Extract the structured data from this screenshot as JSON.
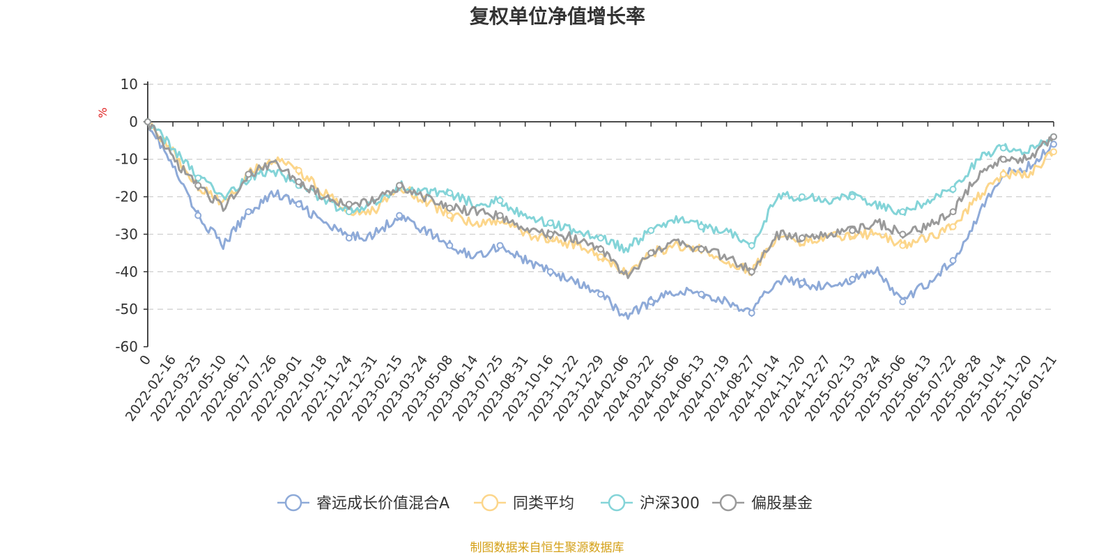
{
  "chart_data": {
    "type": "line",
    "title": "复权单位净值增长率",
    "ylabel": "%",
    "ylim": [
      -60,
      10
    ],
    "yticks": [
      10,
      0,
      -10,
      -20,
      -30,
      -40,
      -50,
      -60
    ],
    "grid": true,
    "legend_position": "bottom",
    "source": "制图数据来自恒生聚源数据库",
    "x": [
      "0",
      "2022-02-16",
      "2022-03-25",
      "2022-05-10",
      "2022-06-17",
      "2022-07-26",
      "2022-09-01",
      "2022-10-18",
      "2022-11-24",
      "2022-12-31",
      "2023-02-15",
      "2023-03-24",
      "2023-05-08",
      "2023-06-14",
      "2023-07-25",
      "2023-08-31",
      "2023-10-16",
      "2023-11-22",
      "2023-12-29",
      "2024-02-06",
      "2024-03-22",
      "2024-05-06",
      "2024-06-13",
      "2024-07-19",
      "2024-08-27",
      "2024-10-14",
      "2024-11-20",
      "2024-12-27",
      "2025-02-13",
      "2025-03-24",
      "2025-05-06",
      "2025-06-13",
      "2025-07-22",
      "2025-08-28",
      "2025-10-14",
      "2025-11-20",
      "2026-01-21"
    ],
    "series": [
      {
        "name": "睿远成长价值混合A",
        "color": "#8eaad8",
        "values": [
          0,
          -12,
          -25,
          -33,
          -24,
          -19,
          -22,
          -27,
          -31,
          -30,
          -25,
          -29,
          -33,
          -36,
          -33,
          -37,
          -40,
          -43,
          -46,
          -52,
          -48,
          -45,
          -46,
          -48,
          -51,
          -42,
          -43,
          -44,
          -42,
          -40,
          -48,
          -43,
          -37,
          -25,
          -14,
          -12,
          -6
        ]
      },
      {
        "name": "同类平均",
        "color": "#fcd68b",
        "values": [
          0,
          -8,
          -17,
          -22,
          -14,
          -10,
          -13,
          -19,
          -24,
          -24,
          -17,
          -21,
          -25,
          -27,
          -26,
          -30,
          -31,
          -33,
          -36,
          -40,
          -35,
          -33,
          -34,
          -37,
          -40,
          -31,
          -32,
          -31,
          -30,
          -30,
          -33,
          -31,
          -28,
          -20,
          -14,
          -14,
          -8
        ]
      },
      {
        "name": "沪深300",
        "color": "#84d4d8",
        "values": [
          0,
          -7,
          -15,
          -20,
          -15,
          -13,
          -17,
          -21,
          -24,
          -22,
          -17,
          -19,
          -19,
          -22,
          -21,
          -25,
          -27,
          -29,
          -31,
          -34,
          -29,
          -26,
          -28,
          -29,
          -33,
          -20,
          -20,
          -21,
          -20,
          -22,
          -24,
          -21,
          -18,
          -10,
          -7,
          -8,
          -4
        ]
      },
      {
        "name": "偏股基金",
        "color": "#9a9a9a",
        "values": [
          0,
          -10,
          -17,
          -23,
          -14,
          -11,
          -16,
          -20,
          -22,
          -21,
          -17,
          -20,
          -23,
          -24,
          -25,
          -29,
          -30,
          -31,
          -34,
          -41,
          -35,
          -32,
          -34,
          -36,
          -40,
          -30,
          -31,
          -30,
          -29,
          -27,
          -30,
          -28,
          -24,
          -14,
          -10,
          -10,
          -4
        ]
      }
    ]
  }
}
